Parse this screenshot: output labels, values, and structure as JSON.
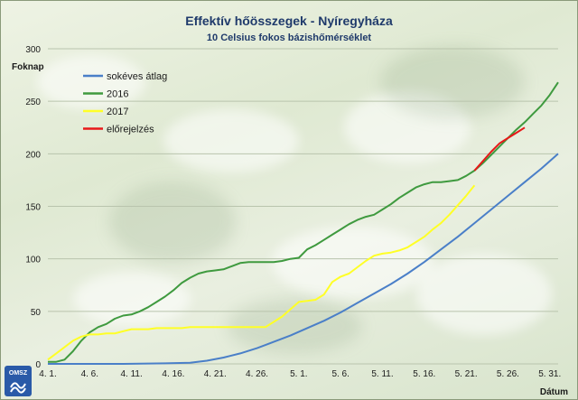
{
  "chart_data": {
    "type": "line",
    "title": "Effektív hőösszegek - Nyíregyháza",
    "subtitle": "10 Celsius fokos bázishőmérséklet",
    "ylabel": "Foknap",
    "xlabel": "Dátum",
    "ylim": [
      0,
      300
    ],
    "yticks": [
      "0",
      "50",
      "100",
      "150",
      "200",
      "250",
      "300"
    ],
    "xticks": [
      "4. 1.",
      "4. 6.",
      "4. 11.",
      "4. 16.",
      "4. 21.",
      "4. 26.",
      "5. 1.",
      "5. 6.",
      "5. 11.",
      "5. 16.",
      "5. 21.",
      "5. 26.",
      "5. 31."
    ],
    "xlim": [
      1,
      62
    ],
    "grid": true,
    "legend_placement": "top-left",
    "series": [
      {
        "name": "sokéves átlag",
        "color": "#4a7fc8",
        "x": [
          1,
          5,
          10,
          15,
          18,
          20,
          22,
          24,
          26,
          28,
          30,
          32,
          34,
          36,
          38,
          40,
          42,
          44,
          46,
          48,
          50,
          52,
          54,
          56,
          58,
          60,
          62
        ],
        "y": [
          0,
          0,
          0,
          0.5,
          1,
          3,
          6,
          10,
          15,
          21,
          27,
          34,
          41,
          49,
          58,
          67,
          76,
          86,
          97,
          109,
          121,
          134,
          147,
          160,
          173,
          186,
          200
        ]
      },
      {
        "name": "2016",
        "color": "#3f9a3f",
        "x": [
          1,
          2,
          3,
          4,
          5,
          6,
          7,
          8,
          9,
          10,
          11,
          12,
          13,
          14,
          15,
          16,
          17,
          18,
          19,
          20,
          21,
          22,
          23,
          24,
          25,
          26,
          27,
          28,
          29,
          30,
          31,
          32,
          33,
          34,
          35,
          36,
          37,
          38,
          39,
          40,
          41,
          42,
          43,
          44,
          45,
          46,
          47,
          48,
          49,
          50,
          51,
          52,
          53,
          54,
          55,
          56,
          57,
          58,
          59,
          60,
          61,
          62
        ],
        "y": [
          2,
          2,
          4,
          12,
          22,
          30,
          35,
          38,
          43,
          46,
          47,
          50,
          54,
          59,
          64,
          70,
          77,
          82,
          86,
          88,
          89,
          90,
          93,
          96,
          97,
          97,
          97,
          97,
          98,
          100,
          101,
          109,
          113,
          118,
          123,
          128,
          133,
          137,
          140,
          142,
          147,
          152,
          158,
          163,
          168,
          171,
          173,
          173,
          174,
          175,
          179,
          184,
          191,
          199,
          207,
          215,
          223,
          230,
          238,
          246,
          256,
          268
        ]
      },
      {
        "name": "2017",
        "color": "#ffff26",
        "x": [
          1,
          2,
          3,
          4,
          5,
          6,
          7,
          8,
          9,
          10,
          11,
          12,
          13,
          14,
          15,
          16,
          17,
          18,
          19,
          20,
          21,
          22,
          23,
          24,
          25,
          26,
          27,
          28,
          29,
          30,
          31,
          32,
          33,
          34,
          35,
          36,
          37,
          38,
          39,
          40,
          41,
          42,
          43,
          44,
          45,
          46,
          47,
          48,
          49,
          50,
          51,
          52
        ],
        "y": [
          4,
          10,
          16,
          22,
          26,
          28,
          28,
          29,
          29,
          31,
          33,
          33,
          33,
          34,
          34,
          34,
          34,
          35,
          35,
          35,
          35,
          35,
          35,
          35,
          35,
          35,
          35,
          40,
          45,
          52,
          59,
          60,
          61,
          66,
          78,
          83,
          86,
          92,
          98,
          103,
          105,
          106,
          108,
          111,
          116,
          121,
          128,
          134,
          142,
          151,
          160,
          170
        ]
      },
      {
        "name": "előrejelzés",
        "color": "#e81818",
        "x": [
          52,
          53,
          54,
          55,
          56,
          57,
          58
        ],
        "y": [
          184,
          193,
          202,
          210,
          215,
          220,
          225
        ]
      }
    ]
  },
  "branding": {
    "logo_text": "OMSZ"
  }
}
